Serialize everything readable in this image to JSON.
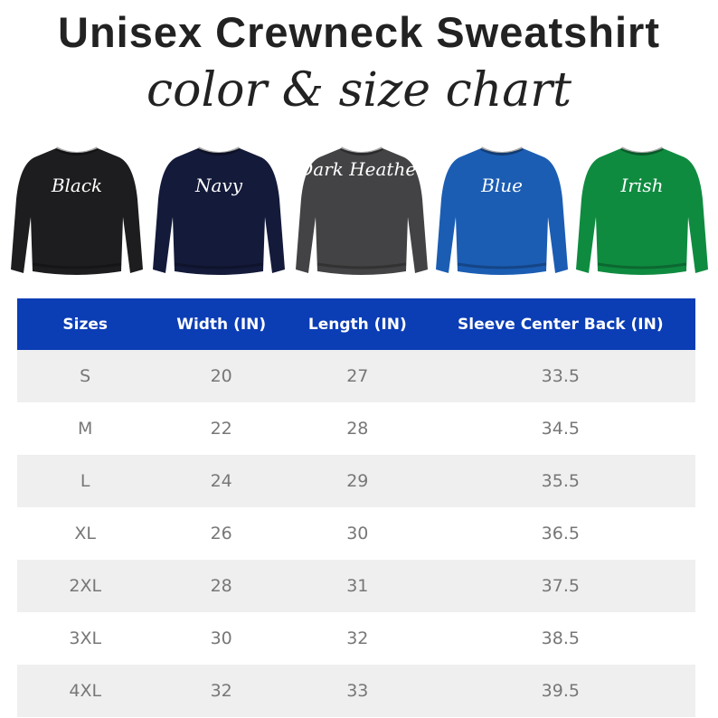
{
  "title": "Unisex Crewneck Sweatshirt",
  "subtitle": "color & size chart",
  "colors": [
    {
      "label": "Black",
      "hex": "#1d1d1f"
    },
    {
      "label": "Navy",
      "hex": "#141a3a"
    },
    {
      "label": "Dark Heather",
      "hex": "#434345"
    },
    {
      "label": "Blue",
      "hex": "#1b5db3"
    },
    {
      "label": "Irish",
      "hex": "#0f8b40"
    }
  ],
  "table": {
    "header_color": "#0b3db5",
    "headers": [
      "Sizes",
      "Width (IN)",
      "Length (IN)",
      "Sleeve Center Back (IN)"
    ],
    "rows": [
      [
        "S",
        "20",
        "27",
        "33.5"
      ],
      [
        "M",
        "22",
        "28",
        "34.5"
      ],
      [
        "L",
        "24",
        "29",
        "35.5"
      ],
      [
        "XL",
        "26",
        "30",
        "36.5"
      ],
      [
        "2XL",
        "28",
        "31",
        "37.5"
      ],
      [
        "3XL",
        "30",
        "32",
        "38.5"
      ],
      [
        "4XL",
        "32",
        "33",
        "39.5"
      ]
    ]
  }
}
